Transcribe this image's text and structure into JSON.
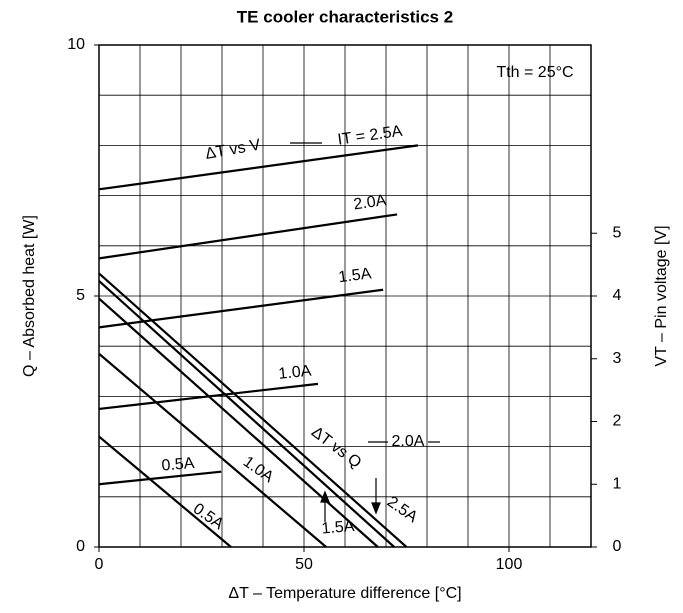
{
  "chart_data": {
    "type": "line",
    "title": "TE cooler characteristics 2",
    "xlabel": "ΔT – Temperature difference [°C]",
    "ylabel": "Q – Absorbed heat [W]",
    "y2label": "VT – Pin voltage [V]",
    "xlim": [
      0,
      120
    ],
    "xticks": [
      0,
      50,
      100
    ],
    "xgrid": [
      10,
      20,
      30,
      40,
      50,
      60,
      70,
      80,
      90,
      100,
      110
    ],
    "ylim": [
      0,
      10
    ],
    "yticks": [
      0,
      5,
      10
    ],
    "ygrid": [
      1,
      2,
      3,
      4,
      5,
      6,
      7,
      8,
      9
    ],
    "y2lim": [
      0,
      8
    ],
    "y2ticks": [
      0,
      1,
      2,
      3,
      4,
      5
    ],
    "grid": true,
    "annotations": [
      "ΔT vs V",
      "ΔT vs Q",
      "Tth = 25°C"
    ],
    "series": [
      {
        "name": "IT = 2.5A",
        "color": "#000000",
        "axis": "y2",
        "x": [
          0,
          77.8
        ],
        "values": [
          5.7,
          6.4
        ]
      },
      {
        "name": "2.0A",
        "color": "#000000",
        "axis": "y2",
        "x": [
          0,
          72.7
        ],
        "values": [
          4.6,
          5.3
        ]
      },
      {
        "name": "1.5A",
        "color": "#000000",
        "axis": "y2",
        "x": [
          0,
          69.3
        ],
        "values": [
          3.5,
          4.1
        ]
      },
      {
        "name": "1.0A",
        "color": "#000000",
        "axis": "y2",
        "x": [
          0,
          53.4
        ],
        "values": [
          2.2,
          2.6
        ]
      },
      {
        "name": "0.5A",
        "color": "#000000",
        "axis": "y2",
        "x": [
          0,
          29.8
        ],
        "values": [
          1.0,
          1.2
        ]
      },
      {
        "name": "0.5A",
        "color": "#000000",
        "x": [
          0,
          32.2
        ],
        "values": [
          2.2,
          0
        ]
      },
      {
        "name": "1.0A",
        "color": "#000000",
        "x": [
          0,
          55.4
        ],
        "values": [
          3.85,
          0
        ]
      },
      {
        "name": "1.5A",
        "color": "#000000",
        "x": [
          0,
          68
        ],
        "values": [
          4.95,
          0
        ]
      },
      {
        "name": "2.0A",
        "color": "#000000",
        "x": [
          0,
          72
        ],
        "values": [
          5.3,
          0
        ]
      },
      {
        "name": "2.5A",
        "color": "#000000",
        "x": [
          0,
          75
        ],
        "values": [
          5.45,
          0
        ]
      }
    ]
  }
}
